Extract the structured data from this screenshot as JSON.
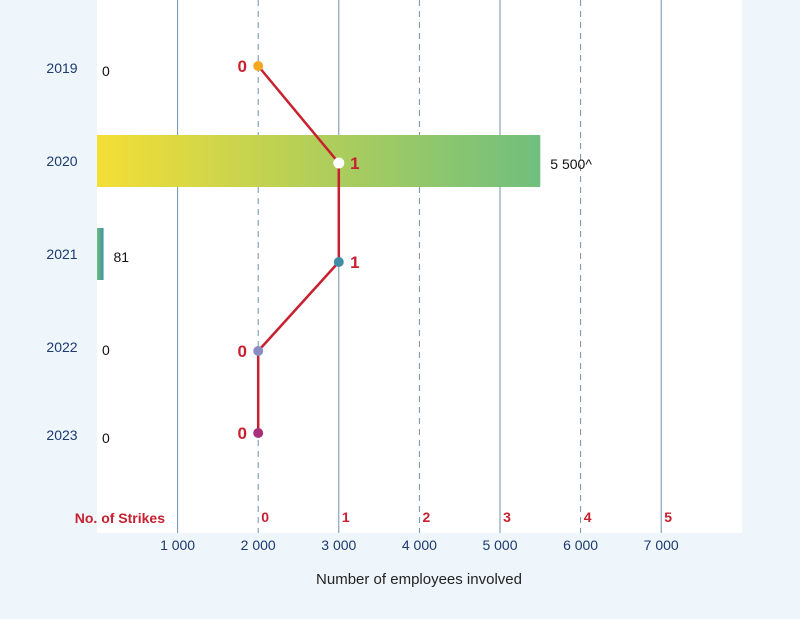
{
  "colors": {
    "page_background": "#eef5fb",
    "plot_background": "#ffffff",
    "year_label": "#1c3a6e",
    "strike_line": "#c8202f",
    "strike_label": "#c8202f",
    "value_label": "#111111",
    "grid": "#6f8fae",
    "bar_start": "#f4de35",
    "bar_end": "#6fbf7e",
    "small_bar_start": "#6fbf7e",
    "small_bar_end": "#3f8ea6",
    "axis_tick": "#1c3a6e"
  },
  "chart_data": {
    "type": "bar",
    "orientation": "horizontal",
    "categories": [
      "2019",
      "2020",
      "2021",
      "2022",
      "2023"
    ],
    "series": [
      {
        "kind": "bar",
        "values": [
          0,
          5500,
          81,
          0,
          0
        ],
        "data_labels": [
          "0",
          "5 500^",
          "81",
          "0",
          "0"
        ]
      },
      {
        "kind": "line",
        "values": [
          0,
          1,
          1,
          0,
          0
        ],
        "data_labels": [
          "0",
          "1",
          "1",
          "0",
          "0"
        ],
        "point_colors": [
          "#f3a81f",
          "#ffffff",
          "#3f8ea6",
          "#8a8cc4",
          "#a8307a"
        ]
      }
    ],
    "xlabel": "Number of employees involved",
    "xlim": [
      0,
      7750
    ],
    "xticks": [
      1000,
      2000,
      3000,
      4000,
      5000,
      6000,
      7000
    ],
    "xtick_labels": [
      "1 000",
      "2 000",
      "3 000",
      "4 000",
      "5 000",
      "6 000",
      "7 000"
    ],
    "secondary_axis": {
      "label": "No. of Strikes",
      "ticks": [
        0,
        1,
        2,
        3,
        4,
        5
      ],
      "tick_labels": [
        "0",
        "1",
        "2",
        "3",
        "4",
        "5"
      ],
      "range": [
        0,
        5
      ]
    },
    "grid": true
  }
}
